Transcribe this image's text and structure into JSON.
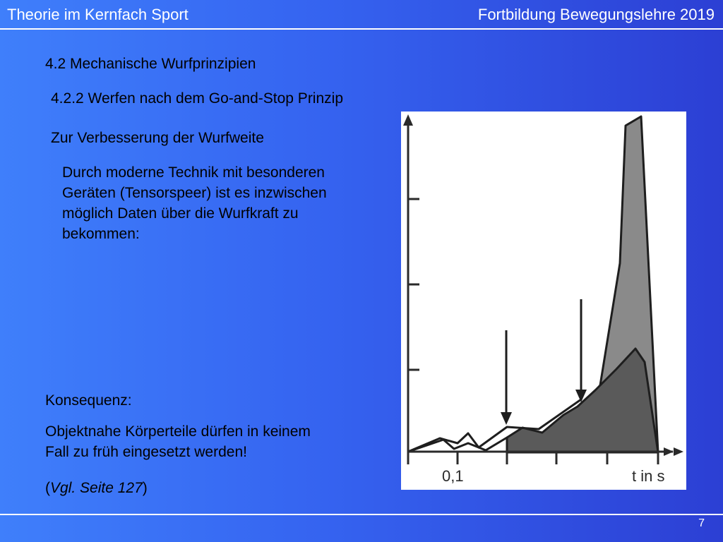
{
  "header": {
    "left_title": "Theorie im Kernfach Sport",
    "right_title": "Fortbildung Bewegungslehre 2019"
  },
  "content": {
    "section_title": "4.2 Mechanische Wurfprinzipien",
    "subsection_title": "4.2.2  Werfen nach dem Go-and-Stop Prinzip",
    "intro": "Zur Verbesserung der Wurfweite",
    "body_lines": [
      "Durch moderne Technik mit besonderen",
      "Geräten (Tensorspeer) ist es inzwischen",
      "möglich Daten über die Wurfkraft zu",
      "bekommen:"
    ],
    "konsequenz": "Konsequenz:",
    "objekt_lines": [
      "Objektnahe Körperteile dürfen in keinem",
      "Fall zu früh eingesetzt werden!"
    ],
    "vgl_open": "(",
    "vgl_italic": "Vgl. Seite 127",
    "vgl_close": ")"
  },
  "figure": {
    "x_tick_label": "0,1",
    "x_axis_label": "t in s"
  },
  "footer": {
    "page_number": "7"
  },
  "colors": {
    "background_left": "#3f7ffb",
    "background_right": "#2c3fd4",
    "curve_light": "#8a8a8a",
    "curve_dark": "#5a5a5a"
  }
}
